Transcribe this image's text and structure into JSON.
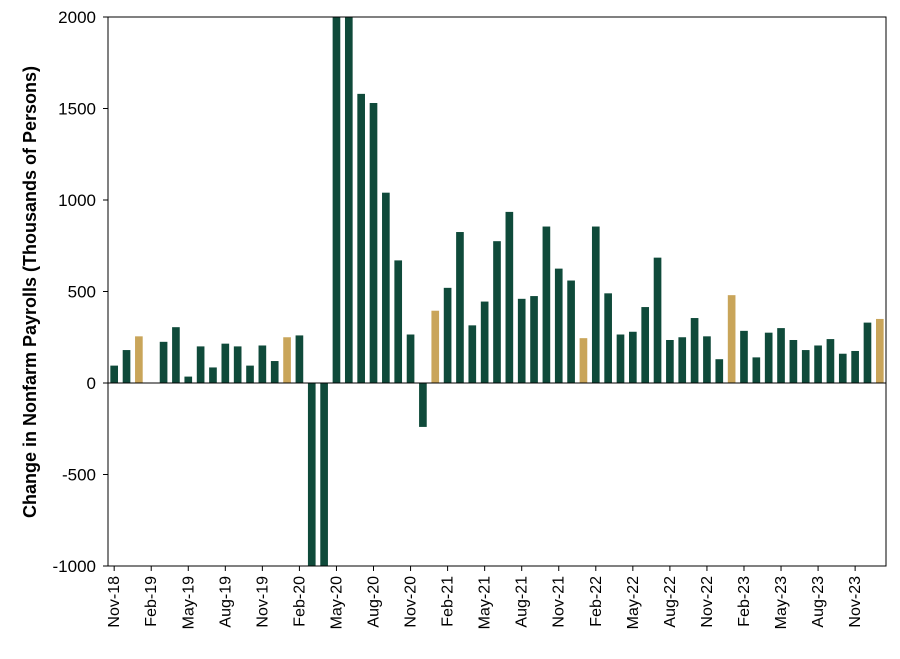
{
  "chart_data": {
    "type": "bar",
    "ylabel": "Change in Nonfarm Payrolls (Thousands of Persons)",
    "xlabel": "",
    "ylim": [
      -1000,
      2000
    ],
    "yticks": [
      2000,
      1500,
      1000,
      500,
      0,
      -500,
      -1000
    ],
    "ytick_labels": [
      "2000",
      "1500",
      "1000",
      "500",
      "0",
      "-500",
      "-1000"
    ],
    "grid": false,
    "colors": {
      "default": "#0f4a3a",
      "highlight": "#c9a55a"
    },
    "categories": [
      "Nov-18",
      "Dec-18",
      "Jan-19",
      "Feb-19",
      "Mar-19",
      "Apr-19",
      "May-19",
      "Jun-19",
      "Jul-19",
      "Aug-19",
      "Sep-19",
      "Oct-19",
      "Nov-19",
      "Dec-19",
      "Jan-20",
      "Feb-20",
      "Mar-20",
      "Apr-20",
      "May-20",
      "Jun-20",
      "Jul-20",
      "Aug-20",
      "Sep-20",
      "Oct-20",
      "Nov-20",
      "Dec-20",
      "Jan-21",
      "Feb-21",
      "Mar-21",
      "Apr-21",
      "May-21",
      "Jun-21",
      "Jul-21",
      "Aug-21",
      "Sep-21",
      "Oct-21",
      "Nov-21",
      "Dec-21",
      "Jan-22",
      "Feb-22",
      "Mar-22",
      "Apr-22",
      "May-22",
      "Jun-22",
      "Jul-22",
      "Aug-22",
      "Sep-22",
      "Oct-22",
      "Nov-22",
      "Dec-22",
      "Jan-23",
      "Feb-23",
      "Mar-23",
      "Apr-23",
      "May-23",
      "Jun-23",
      "Jul-23",
      "Aug-23",
      "Sep-23",
      "Oct-23",
      "Nov-23",
      "Dec-23",
      "Jan-24"
    ],
    "values": [
      95,
      180,
      255,
      0,
      225,
      305,
      35,
      200,
      85,
      215,
      200,
      95,
      205,
      120,
      250,
      260,
      -1000,
      -1000,
      2000,
      2000,
      1580,
      1530,
      1040,
      670,
      265,
      -240,
      395,
      520,
      825,
      315,
      445,
      775,
      935,
      460,
      475,
      855,
      625,
      560,
      245,
      855,
      490,
      265,
      280,
      415,
      685,
      235,
      250,
      355,
      255,
      130,
      480,
      285,
      140,
      275,
      300,
      235,
      180,
      205,
      240,
      160,
      175,
      330,
      350
    ],
    "highlight": [
      false,
      false,
      true,
      false,
      false,
      false,
      false,
      false,
      false,
      false,
      false,
      false,
      false,
      false,
      true,
      false,
      false,
      false,
      false,
      false,
      false,
      false,
      false,
      false,
      false,
      false,
      true,
      false,
      false,
      false,
      false,
      false,
      false,
      false,
      false,
      false,
      false,
      false,
      true,
      false,
      false,
      false,
      false,
      false,
      false,
      false,
      false,
      false,
      false,
      false,
      true,
      false,
      false,
      false,
      false,
      false,
      false,
      false,
      false,
      false,
      false,
      false,
      true
    ],
    "tick_labels": [
      "Nov-18",
      "Feb-19",
      "May-19",
      "Aug-19",
      "Nov-19",
      "Feb-20",
      "May-20",
      "Aug-20",
      "Nov-20",
      "Feb-21",
      "May-21",
      "Aug-21",
      "Nov-21",
      "Feb-22",
      "May-22",
      "Aug-22",
      "Nov-22",
      "Feb-23",
      "May-23",
      "Aug-23",
      "Nov-23"
    ]
  }
}
